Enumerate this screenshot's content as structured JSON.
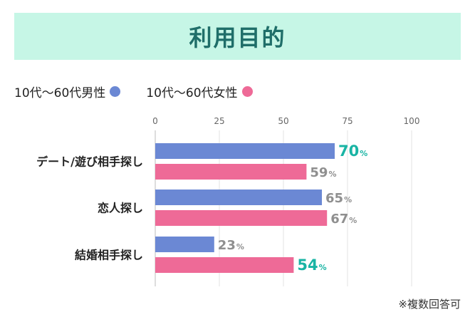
{
  "title": "利用目的",
  "legend": [
    {
      "label": "10代〜60代男性",
      "color": "#6b88d4"
    },
    {
      "label": "10代〜60代女性",
      "color": "#ee6a97"
    }
  ],
  "note": "※複数回答可",
  "chart_data": {
    "type": "bar",
    "orientation": "horizontal",
    "categories": [
      "デート/遊び相手探し",
      "恋人探し",
      "結婚相手探し"
    ],
    "series": [
      {
        "name": "10代〜60代男性",
        "values": [
          70,
          65,
          23
        ],
        "color": "#6b88d4"
      },
      {
        "name": "10代〜60代女性",
        "values": [
          59,
          67,
          54
        ],
        "color": "#ee6a97"
      }
    ],
    "xlim": [
      0,
      100
    ],
    "xticks": [
      0,
      25,
      50,
      75,
      100
    ],
    "value_unit": "%",
    "highlight_color": "#19b4a4",
    "label_color": "#8f8f8f",
    "highlighted": [
      [
        0,
        0
      ],
      [
        1,
        2
      ]
    ],
    "grid": true
  }
}
